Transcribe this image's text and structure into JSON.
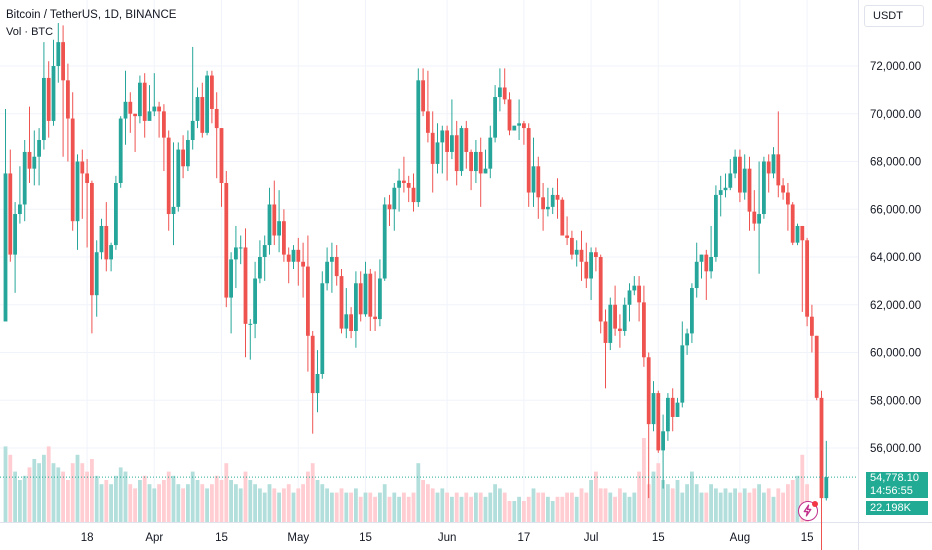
{
  "header": {
    "title": "Bitcoin / TetherUS, 1D, BINANCE",
    "volume_label": "Vol · BTC"
  },
  "toolbar": {
    "currency": "USDT"
  },
  "last": {
    "price": "54,778.10",
    "countdown": "14:56:55",
    "volume": "22.198K"
  },
  "colors": {
    "up": "#26a69a",
    "down": "#ef5350",
    "vol_up": "#b2dfdb",
    "vol_down": "#ffcdd2",
    "badge": "#22ab94",
    "grid": "#f0f3fa"
  },
  "icons": {
    "alert": "lightning-icon"
  },
  "chart_data": {
    "type": "candlestick",
    "title": "Bitcoin / TetherUS, 1D, BINANCE",
    "xlabel": "",
    "ylabel": "",
    "ylim": [
      54200,
      73400
    ],
    "y_ticks": [
      "72,000.00",
      "70,000.00",
      "68,000.00",
      "66,000.00",
      "64,000.00",
      "62,000.00",
      "60,000.00",
      "58,000.00",
      "56,000.00"
    ],
    "y_tick_values": [
      72000,
      70000,
      68000,
      66000,
      64000,
      62000,
      60000,
      58000,
      56000
    ],
    "x_ticks": [
      {
        "label": "18",
        "index": 17
      },
      {
        "label": "Apr",
        "index": 31
      },
      {
        "label": "15",
        "index": 45
      },
      {
        "label": "May",
        "index": 61
      },
      {
        "label": "15",
        "index": 75
      },
      {
        "label": "Jun",
        "index": 92
      },
      {
        "label": "17",
        "index": 108
      },
      {
        "label": "Jul",
        "index": 122
      },
      {
        "label": "15",
        "index": 136
      },
      {
        "label": "Aug",
        "index": 153
      },
      {
        "label": "15",
        "index": 167
      }
    ],
    "current_price": 54778.1,
    "candles": [
      [
        61300,
        67500,
        70200,
        66000
      ],
      [
        67500,
        64100,
        68500,
        63800
      ],
      [
        64100,
        65800,
        66300,
        62500
      ],
      [
        65800,
        66200,
        67800,
        65400
      ],
      [
        66200,
        68400,
        68900,
        65500
      ],
      [
        68400,
        67700,
        70300,
        67100
      ],
      [
        67700,
        68200,
        69300,
        67000
      ],
      [
        68200,
        68900,
        69400,
        67000
      ],
      [
        68900,
        71500,
        73000,
        68500
      ],
      [
        71500,
        69700,
        72200,
        69000
      ],
      [
        69700,
        72000,
        73100,
        69500
      ],
      [
        72000,
        73000,
        73800,
        71300
      ],
      [
        73000,
        71400,
        73700,
        68200
      ],
      [
        71400,
        69800,
        72100,
        68000
      ],
      [
        69800,
        65500,
        70900,
        65100
      ],
      [
        65500,
        68000,
        68300,
        64300
      ],
      [
        68000,
        67500,
        68500,
        65600
      ],
      [
        67500,
        67100,
        68100,
        64400
      ],
      [
        67100,
        62400,
        67200,
        60800
      ],
      [
        62400,
        64200,
        64700,
        61500
      ],
      [
        64200,
        65300,
        65600,
        63900
      ],
      [
        65300,
        63900,
        66300,
        63400
      ],
      [
        63900,
        64500,
        64600,
        63400
      ],
      [
        64500,
        67100,
        67400,
        64300
      ],
      [
        67100,
        69800,
        69900,
        66900
      ],
      [
        69800,
        70500,
        71800,
        68700
      ],
      [
        70500,
        70000,
        70900,
        69200
      ],
      [
        70000,
        69900,
        70000,
        68400
      ],
      [
        69900,
        71300,
        71600,
        69600
      ],
      [
        71300,
        69700,
        71700,
        69000
      ],
      [
        69700,
        70100,
        71200,
        69800
      ],
      [
        70100,
        70300,
        71700,
        69900
      ],
      [
        70300,
        70100,
        70500,
        69000
      ],
      [
        70100,
        69000,
        70400,
        67600
      ],
      [
        69000,
        65800,
        69300,
        65100
      ],
      [
        65800,
        66100,
        68800,
        64500
      ],
      [
        66100,
        68500,
        68800,
        65900
      ],
      [
        68500,
        67800,
        69100,
        67300
      ],
      [
        67800,
        68900,
        69300,
        67600
      ],
      [
        68900,
        69700,
        72800,
        68500
      ],
      [
        69700,
        70700,
        71100,
        69400
      ],
      [
        70700,
        69200,
        71300,
        69000
      ],
      [
        69200,
        71600,
        71800,
        69100
      ],
      [
        71600,
        70200,
        71800,
        69600
      ],
      [
        70200,
        69400,
        70900,
        67300
      ],
      [
        69400,
        67100,
        69400,
        66100
      ],
      [
        67100,
        62300,
        67600,
        61900
      ],
      [
        62300,
        63900,
        64200,
        60800
      ],
      [
        63900,
        64400,
        65300,
        62700
      ],
      [
        64400,
        64400,
        64900,
        63700
      ],
      [
        64400,
        61200,
        65200,
        59800
      ],
      [
        61200,
        61200,
        61400,
        59700
      ],
      [
        61200,
        63100,
        63800,
        60600
      ],
      [
        63100,
        64000,
        64700,
        62900
      ],
      [
        64000,
        64500,
        64900,
        63000
      ],
      [
        64500,
        66200,
        66900,
        64100
      ],
      [
        66200,
        64900,
        67200,
        64500
      ],
      [
        64900,
        65500,
        66800,
        64200
      ],
      [
        65500,
        64100,
        66000,
        63800
      ],
      [
        64100,
        63800,
        64400,
        62900
      ],
      [
        63800,
        64300,
        64500,
        63500
      ],
      [
        64300,
        63800,
        64800,
        62800
      ],
      [
        63800,
        63600,
        64600,
        62300
      ],
      [
        63600,
        60700,
        64900,
        59200
      ],
      [
        60700,
        58300,
        60900,
        56600
      ],
      [
        58300,
        59100,
        60100,
        57500
      ],
      [
        59100,
        62900,
        63400,
        58900
      ],
      [
        62900,
        63800,
        64400,
        62600
      ],
      [
        63800,
        64000,
        64600,
        62500
      ],
      [
        64000,
        63200,
        64500,
        62800
      ],
      [
        63200,
        61000,
        63500,
        60800
      ],
      [
        61000,
        61600,
        62700,
        60600
      ],
      [
        61600,
        60900,
        61900,
        60600
      ],
      [
        60900,
        62900,
        63400,
        60200
      ],
      [
        62900,
        61600,
        63400,
        61300
      ],
      [
        61600,
        63300,
        63800,
        61500
      ],
      [
        63300,
        61500,
        63500,
        60900
      ],
      [
        61500,
        61400,
        63400,
        60900
      ],
      [
        61400,
        63100,
        63900,
        61100
      ],
      [
        63100,
        66200,
        66500,
        63000
      ],
      [
        66200,
        66000,
        66600,
        65300
      ],
      [
        66000,
        66900,
        67100,
        65100
      ],
      [
        66900,
        67200,
        67700,
        65900
      ],
      [
        67200,
        67100,
        68200,
        66700
      ],
      [
        67100,
        66900,
        67400,
        66300
      ],
      [
        66900,
        66300,
        67500,
        65900
      ],
      [
        66300,
        71400,
        71900,
        66100
      ],
      [
        71400,
        70100,
        71900,
        69900
      ],
      [
        70100,
        69200,
        71800,
        68800
      ],
      [
        69200,
        67900,
        70100,
        66700
      ],
      [
        67900,
        68800,
        69600,
        67500
      ],
      [
        68800,
        69300,
        69500,
        67500
      ],
      [
        69300,
        68400,
        69500,
        67200
      ],
      [
        68400,
        69100,
        70600,
        68100
      ],
      [
        69100,
        67600,
        69700,
        67000
      ],
      [
        67600,
        69400,
        69500,
        67400
      ],
      [
        69400,
        68400,
        69700,
        67700
      ],
      [
        68400,
        67600,
        68500,
        66800
      ],
      [
        67600,
        68400,
        68900,
        67100
      ],
      [
        68400,
        67500,
        69000,
        66100
      ],
      [
        67500,
        67700,
        68500,
        67500
      ],
      [
        67700,
        69000,
        69500,
        67300
      ],
      [
        69000,
        70700,
        71200,
        68800
      ],
      [
        70700,
        71100,
        71900,
        70100
      ],
      [
        71100,
        70600,
        71900,
        70400
      ],
      [
        70600,
        69300,
        70900,
        69100
      ],
      [
        69300,
        69500,
        69500,
        69300
      ],
      [
        69500,
        69600,
        70600,
        68900
      ],
      [
        69600,
        69400,
        69700,
        68700
      ],
      [
        69400,
        66700,
        69600,
        66100
      ],
      [
        66700,
        67800,
        69000,
        66100
      ],
      [
        67800,
        66500,
        68200,
        65600
      ],
      [
        66500,
        66000,
        67100,
        65100
      ],
      [
        66000,
        66100,
        66900,
        65700
      ],
      [
        66100,
        66600,
        66900,
        65800
      ],
      [
        66600,
        66400,
        67300,
        65600
      ],
      [
        66400,
        64900,
        66500,
        64900
      ],
      [
        64900,
        64800,
        65700,
        64500
      ],
      [
        64800,
        64100,
        65100,
        63900
      ],
      [
        64100,
        64300,
        64700,
        63600
      ],
      [
        64300,
        63800,
        65100,
        63000
      ],
      [
        63800,
        63100,
        64600,
        62700
      ],
      [
        63100,
        64200,
        64400,
        62200
      ],
      [
        64200,
        64000,
        64400,
        63400
      ],
      [
        64000,
        61300,
        64100,
        60800
      ],
      [
        61300,
        60400,
        61800,
        58500
      ],
      [
        60400,
        62000,
        62300,
        60100
      ],
      [
        62000,
        61000,
        62800,
        60700
      ],
      [
        61000,
        60900,
        61600,
        60200
      ],
      [
        60900,
        62000,
        62300,
        60700
      ],
      [
        62000,
        62600,
        62900,
        61300
      ],
      [
        62600,
        62800,
        63200,
        62400
      ],
      [
        62800,
        62100,
        63200,
        61300
      ],
      [
        62100,
        59800,
        62800,
        59400
      ],
      [
        59800,
        57000,
        60000,
        53900
      ],
      [
        57000,
        58300,
        58800,
        56700
      ],
      [
        58300,
        55900,
        58400,
        55800
      ],
      [
        55900,
        56700,
        57400,
        54300
      ],
      [
        56700,
        58100,
        58300,
        56300
      ],
      [
        58100,
        57300,
        58500,
        56700
      ],
      [
        57300,
        57900,
        58100,
        57300
      ],
      [
        57900,
        60300,
        61300,
        57700
      ],
      [
        60300,
        60800,
        61000,
        59900
      ],
      [
        60800,
        62700,
        62900,
        60400
      ],
      [
        62700,
        63800,
        64600,
        62300
      ],
      [
        63800,
        64100,
        64100,
        63100
      ],
      [
        64100,
        63400,
        64300,
        62200
      ],
      [
        63400,
        64000,
        65300,
        63100
      ],
      [
        64000,
        66600,
        67000,
        63800
      ],
      [
        66600,
        66800,
        67400,
        65700
      ],
      [
        66800,
        66900,
        67500,
        66500
      ],
      [
        66900,
        67500,
        68100,
        66800
      ],
      [
        67500,
        68200,
        68500,
        67300
      ],
      [
        68200,
        66700,
        68500,
        66300
      ],
      [
        66700,
        67700,
        68300,
        66400
      ],
      [
        67700,
        65900,
        68200,
        65100
      ],
      [
        65900,
        65400,
        66800,
        65100
      ],
      [
        65400,
        65800,
        68000,
        63300
      ],
      [
        65800,
        68000,
        68200,
        65600
      ],
      [
        68000,
        67500,
        68300,
        66700
      ],
      [
        67500,
        68300,
        68600,
        67300
      ],
      [
        68300,
        67000,
        70100,
        66500
      ],
      [
        67000,
        66700,
        67300,
        66400
      ],
      [
        66700,
        66200,
        67100,
        65100
      ],
      [
        66200,
        64600,
        66300,
        64500
      ],
      [
        64600,
        65300,
        65400,
        64500
      ],
      [
        65300,
        64700,
        65300,
        61700
      ],
      [
        64700,
        61500,
        64800,
        61100
      ],
      [
        61500,
        60700,
        62000,
        60000
      ],
      [
        60700,
        58100,
        60700,
        58000
      ],
      [
        58100,
        53900,
        58400,
        49000
      ],
      [
        53900,
        54780,
        56300,
        53800
      ]
    ],
    "volumes": [
      18,
      16,
      12,
      10,
      11,
      13,
      15,
      14,
      16,
      18,
      14,
      13,
      12,
      10,
      14,
      16,
      14,
      12,
      15,
      11,
      9,
      10,
      9,
      11,
      13,
      12,
      9,
      8,
      10,
      11,
      9,
      8,
      9,
      10,
      12,
      11,
      9,
      8,
      9,
      12,
      10,
      9,
      8,
      9,
      11,
      10,
      14,
      10,
      9,
      8,
      12,
      10,
      9,
      8,
      7,
      9,
      8,
      7,
      8,
      9,
      7,
      8,
      9,
      12,
      14,
      10,
      9,
      8,
      7,
      7,
      8,
      7,
      7,
      8,
      6,
      7,
      7,
      6,
      7,
      9,
      6,
      7,
      6,
      7,
      6,
      7,
      14,
      10,
      9,
      8,
      7,
      8,
      7,
      6,
      7,
      6,
      7,
      6,
      7,
      7,
      6,
      7,
      9,
      8,
      7,
      5,
      5,
      6,
      5,
      6,
      8,
      7,
      7,
      6,
      5,
      6,
      6,
      7,
      7,
      6,
      8,
      7,
      10,
      12,
      8,
      8,
      7,
      6,
      8,
      7,
      6,
      7,
      12,
      20,
      9,
      12,
      14,
      10,
      9,
      8,
      10,
      7,
      9,
      12,
      9,
      7,
      7,
      9,
      8,
      7,
      8,
      7,
      8,
      7,
      8,
      7,
      8,
      9,
      7,
      8,
      6,
      8,
      7,
      9,
      10,
      11,
      16,
      9
    ]
  }
}
